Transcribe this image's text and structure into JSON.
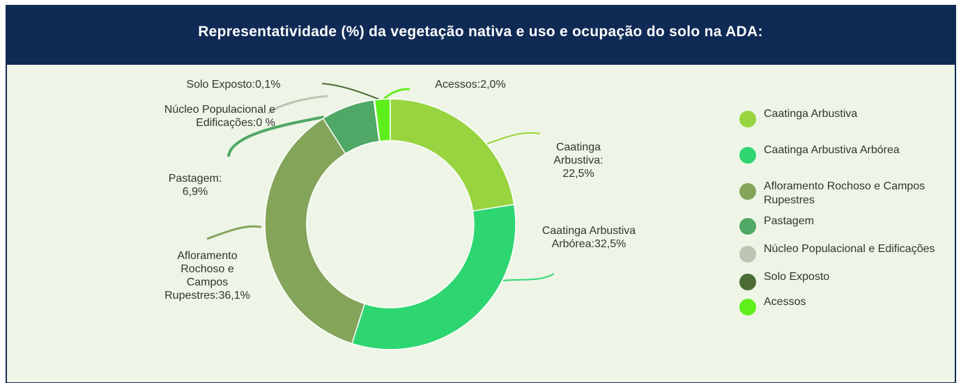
{
  "chart_data": {
    "type": "donut",
    "title": "Representatividade (%) da vegetação nativa e uso e ocupação do solo na ADA:",
    "categories": [
      "Caatinga Arbustiva",
      "Caatinga Arbustiva Arbórea",
      "Afloramento Rochoso e Campos  Rupestres",
      "Pastagem",
      "Núcleo Populacional e Edificações",
      "Solo Exposto",
      "Acessos"
    ],
    "values": [
      22.5,
      32.5,
      36.1,
      6.9,
      0,
      0.1,
      2.0
    ],
    "value_labels": [
      "Caatinga Arbustiva: 22,5%",
      "Caatinga Arbustiva Arbórea:32,5%",
      "Afloramento Rochoso e Campos Rupestres:36,1%",
      "Pastagem: 6,9%",
      "Núcleo Populacional e Edificações:0 %",
      "Solo Exposto:0,1%",
      "Acessos:2,0%"
    ],
    "colors": [
      "#97d43f",
      "#2ed672",
      "#84a45a",
      "#4fa865",
      "#bcc4b4",
      "#4c6b35",
      "#5ff01c"
    ],
    "legend": "right"
  }
}
